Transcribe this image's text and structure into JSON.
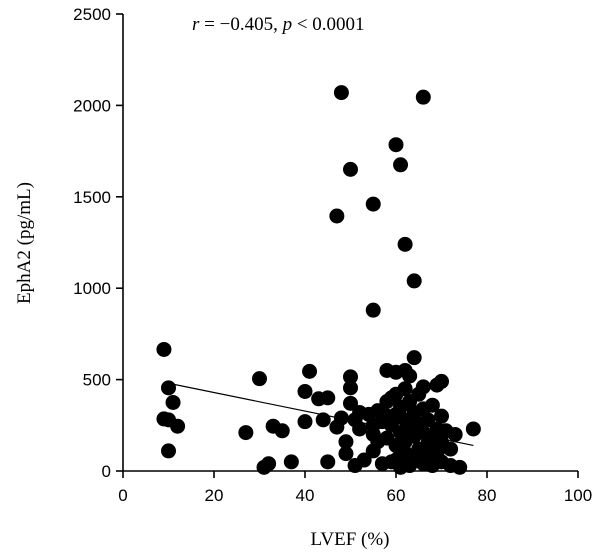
{
  "chart_data": {
    "type": "scatter",
    "xlabel": "LVEF (%)",
    "ylabel": "EphA2 (pg/mL)",
    "annotation": {
      "r_symbol": "r",
      "r_value": " = −0.405, ",
      "p_symbol": "p",
      "p_value": " < 0.0001"
    },
    "xlim": [
      0,
      100
    ],
    "ylim": [
      0,
      2500
    ],
    "x_ticks": [
      0,
      20,
      40,
      60,
      80,
      100
    ],
    "y_ticks": [
      0,
      500,
      1000,
      1500,
      2000,
      2500
    ],
    "grid": false,
    "point_color": "#000000",
    "trendline": {
      "x": [
        10,
        77
      ],
      "y": [
        480,
        140
      ]
    },
    "points": [
      {
        "x": 48,
        "y": 2070
      },
      {
        "x": 66,
        "y": 2045
      },
      {
        "x": 60,
        "y": 1785
      },
      {
        "x": 61,
        "y": 1675
      },
      {
        "x": 50,
        "y": 1650
      },
      {
        "x": 55,
        "y": 1460
      },
      {
        "x": 47,
        "y": 1395
      },
      {
        "x": 62,
        "y": 1240
      },
      {
        "x": 64,
        "y": 1040
      },
      {
        "x": 55,
        "y": 880
      },
      {
        "x": 9,
        "y": 665
      },
      {
        "x": 10,
        "y": 455
      },
      {
        "x": 11,
        "y": 375
      },
      {
        "x": 9,
        "y": 285
      },
      {
        "x": 10,
        "y": 280
      },
      {
        "x": 12,
        "y": 245
      },
      {
        "x": 10,
        "y": 110
      },
      {
        "x": 27,
        "y": 210
      },
      {
        "x": 30,
        "y": 505
      },
      {
        "x": 31,
        "y": 20
      },
      {
        "x": 32,
        "y": 40
      },
      {
        "x": 33,
        "y": 245
      },
      {
        "x": 35,
        "y": 220
      },
      {
        "x": 37,
        "y": 50
      },
      {
        "x": 40,
        "y": 435
      },
      {
        "x": 40,
        "y": 270
      },
      {
        "x": 41,
        "y": 545
      },
      {
        "x": 43,
        "y": 395
      },
      {
        "x": 44,
        "y": 280
      },
      {
        "x": 45,
        "y": 400
      },
      {
        "x": 45,
        "y": 50
      },
      {
        "x": 47,
        "y": 240
      },
      {
        "x": 48,
        "y": 290
      },
      {
        "x": 49,
        "y": 95
      },
      {
        "x": 49,
        "y": 160
      },
      {
        "x": 50,
        "y": 455
      },
      {
        "x": 50,
        "y": 515
      },
      {
        "x": 50,
        "y": 370
      },
      {
        "x": 51,
        "y": 280
      },
      {
        "x": 51,
        "y": 30
      },
      {
        "x": 52,
        "y": 320
      },
      {
        "x": 52,
        "y": 230
      },
      {
        "x": 53,
        "y": 60
      },
      {
        "x": 54,
        "y": 310
      },
      {
        "x": 55,
        "y": 200
      },
      {
        "x": 55,
        "y": 250
      },
      {
        "x": 55,
        "y": 110
      },
      {
        "x": 56,
        "y": 330
      },
      {
        "x": 56,
        "y": 160
      },
      {
        "x": 57,
        "y": 40
      },
      {
        "x": 57,
        "y": 270
      },
      {
        "x": 58,
        "y": 550
      },
      {
        "x": 58,
        "y": 380
      },
      {
        "x": 58,
        "y": 300
      },
      {
        "x": 58,
        "y": 180
      },
      {
        "x": 59,
        "y": 50
      },
      {
        "x": 59,
        "y": 400
      },
      {
        "x": 59,
        "y": 250
      },
      {
        "x": 60,
        "y": 540
      },
      {
        "x": 60,
        "y": 310
      },
      {
        "x": 60,
        "y": 140
      },
      {
        "x": 60,
        "y": 420
      },
      {
        "x": 60,
        "y": 60
      },
      {
        "x": 61,
        "y": 210
      },
      {
        "x": 61,
        "y": 90
      },
      {
        "x": 61,
        "y": 350
      },
      {
        "x": 61,
        "y": 20
      },
      {
        "x": 62,
        "y": 550
      },
      {
        "x": 62,
        "y": 450
      },
      {
        "x": 62,
        "y": 280
      },
      {
        "x": 62,
        "y": 160
      },
      {
        "x": 62,
        "y": 100
      },
      {
        "x": 63,
        "y": 520
      },
      {
        "x": 63,
        "y": 380
      },
      {
        "x": 63,
        "y": 30
      },
      {
        "x": 63,
        "y": 230
      },
      {
        "x": 64,
        "y": 620
      },
      {
        "x": 64,
        "y": 320
      },
      {
        "x": 64,
        "y": 190
      },
      {
        "x": 64,
        "y": 70
      },
      {
        "x": 65,
        "y": 420
      },
      {
        "x": 65,
        "y": 260
      },
      {
        "x": 65,
        "y": 120
      },
      {
        "x": 66,
        "y": 460
      },
      {
        "x": 66,
        "y": 210
      },
      {
        "x": 66,
        "y": 40
      },
      {
        "x": 66,
        "y": 340
      },
      {
        "x": 67,
        "y": 150
      },
      {
        "x": 67,
        "y": 280
      },
      {
        "x": 67,
        "y": 80
      },
      {
        "x": 68,
        "y": 360
      },
      {
        "x": 68,
        "y": 180
      },
      {
        "x": 68,
        "y": 30
      },
      {
        "x": 69,
        "y": 470
      },
      {
        "x": 69,
        "y": 230
      },
      {
        "x": 69,
        "y": 100
      },
      {
        "x": 70,
        "y": 490
      },
      {
        "x": 70,
        "y": 300
      },
      {
        "x": 70,
        "y": 160
      },
      {
        "x": 70,
        "y": 50
      },
      {
        "x": 71,
        "y": 220
      },
      {
        "x": 72,
        "y": 120
      },
      {
        "x": 72,
        "y": 30
      },
      {
        "x": 73,
        "y": 200
      },
      {
        "x": 74,
        "y": 20
      },
      {
        "x": 77,
        "y": 230
      }
    ]
  }
}
